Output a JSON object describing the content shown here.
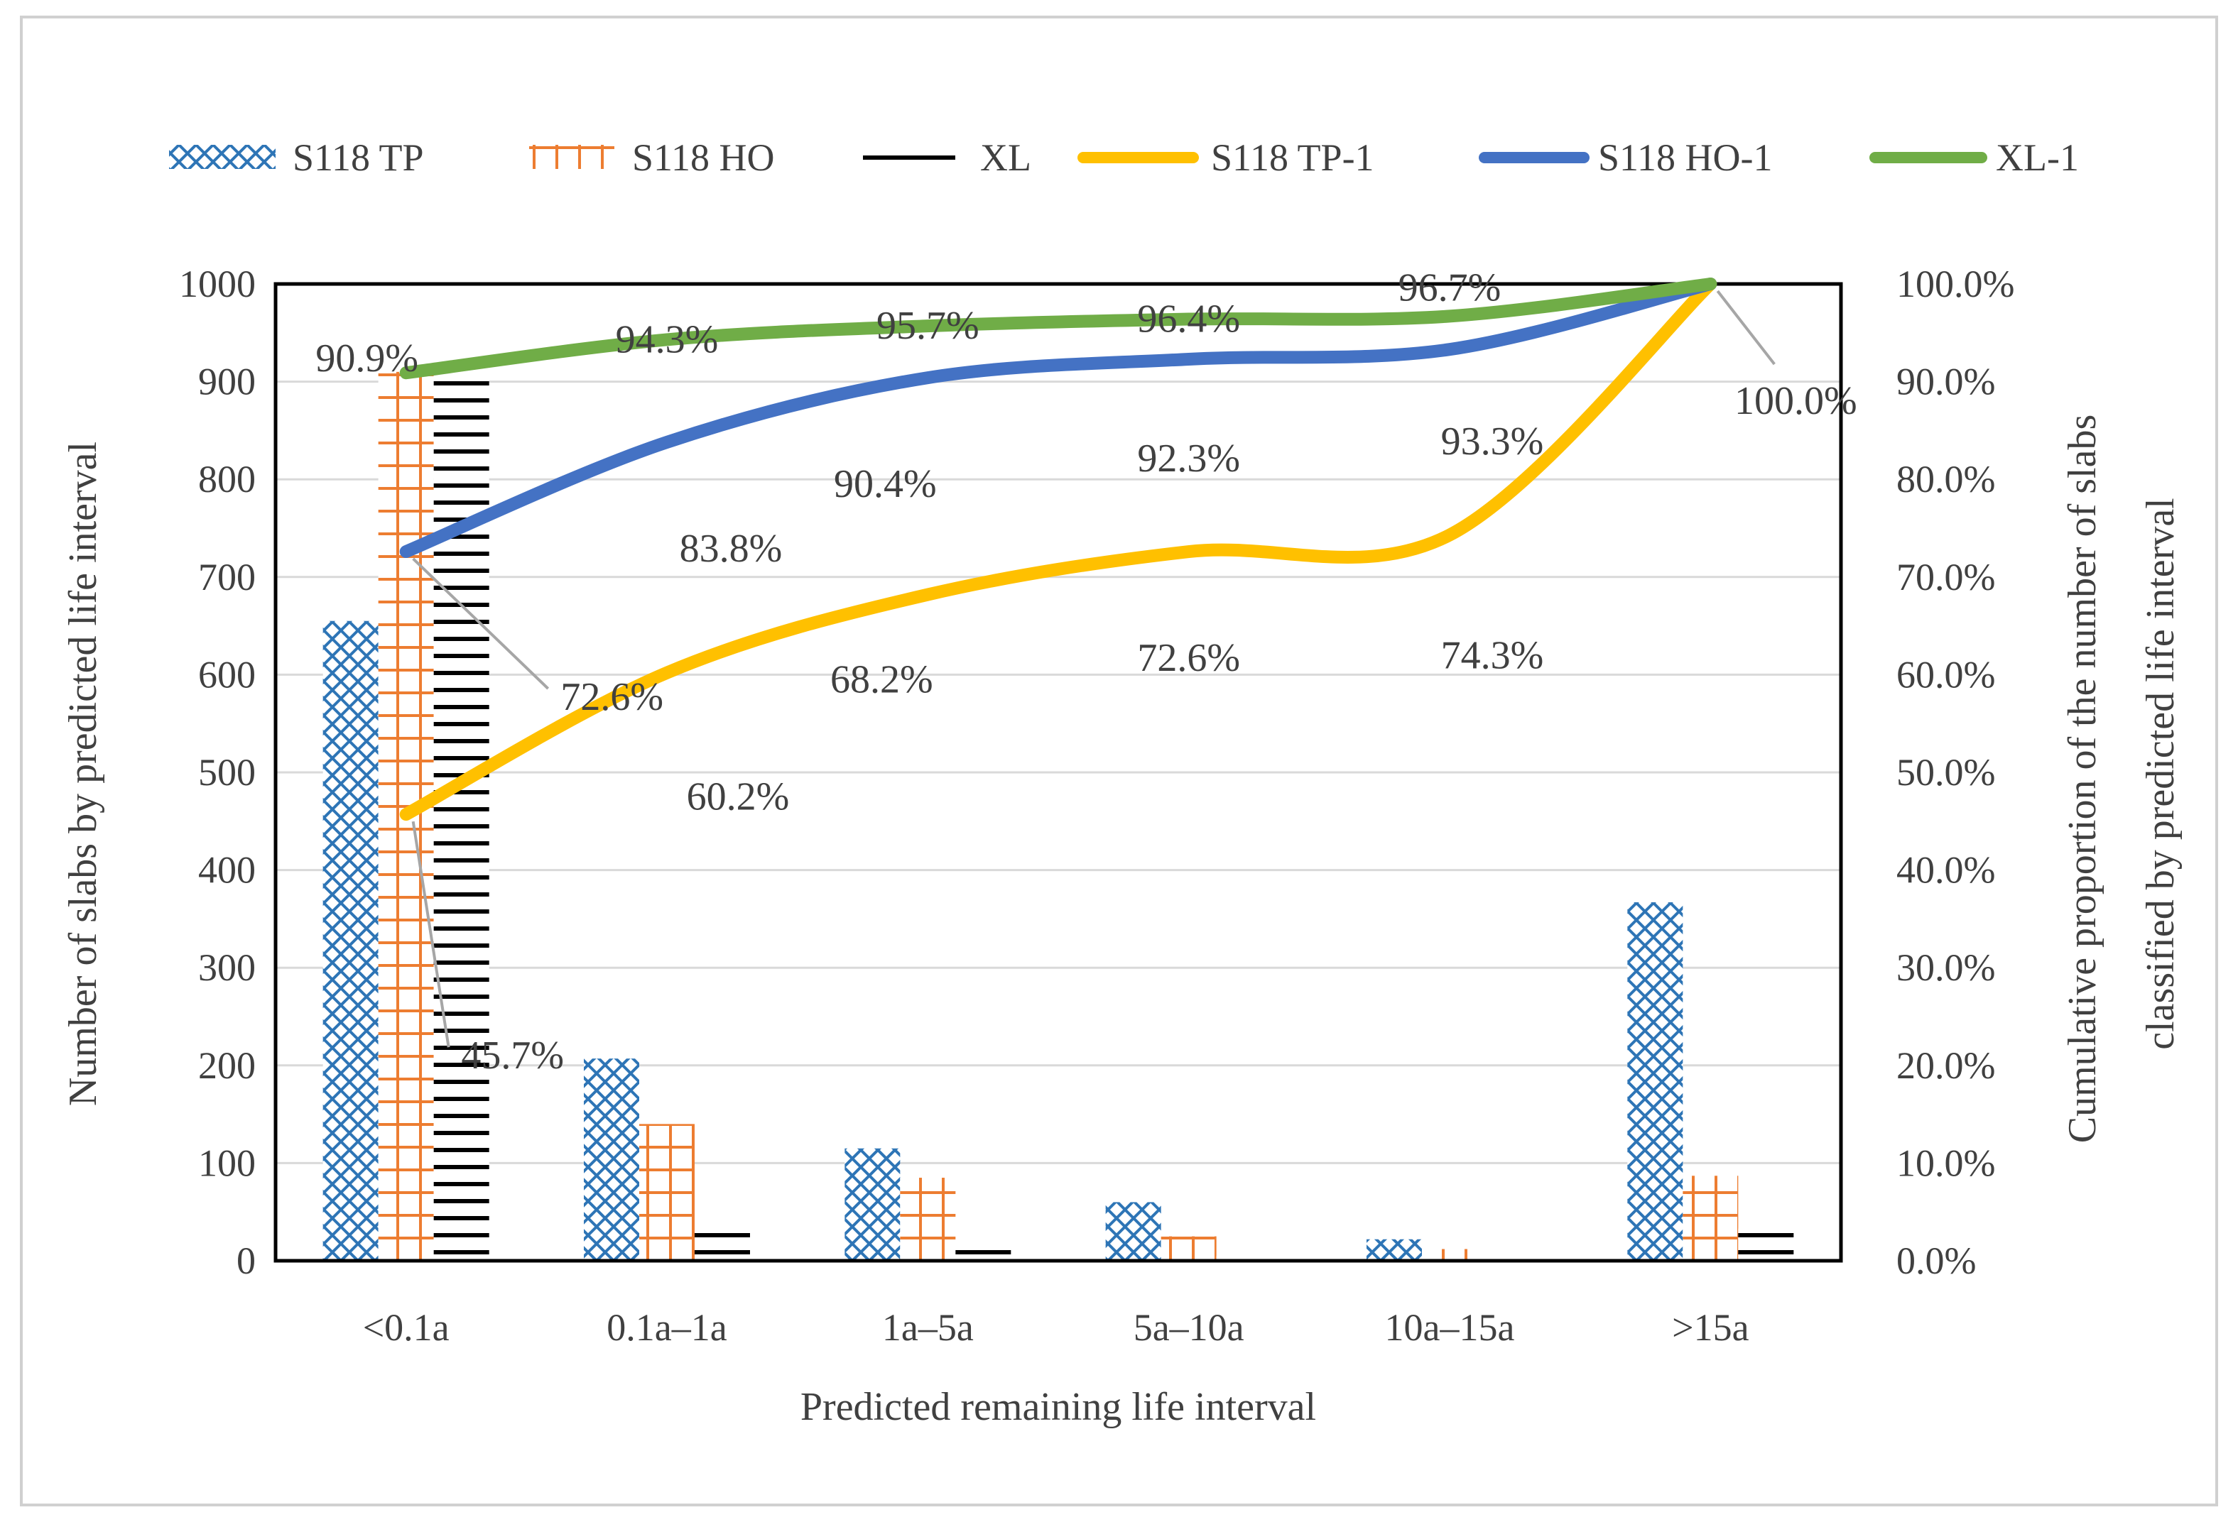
{
  "chart_data": {
    "type": "bar",
    "title": "",
    "xlabel": "Predicted remaining  life  interval",
    "ylabel": "Number of slabs by predicted life  interval",
    "y2label_lines": [
      "Cumulative  proportion of the number of slabs",
      "classified by predicted life  interval"
    ],
    "ylim": [
      0,
      1000
    ],
    "y2lim": [
      0,
      100
    ],
    "y_ticks": [
      "0",
      "100",
      "200",
      "300",
      "400",
      "500",
      "600",
      "700",
      "800",
      "900",
      "1000"
    ],
    "y2_ticks": [
      "0.0%",
      "10.0%",
      "20.0%",
      "30.0%",
      "40.0%",
      "50.0%",
      "60.0%",
      "70.0%",
      "80.0%",
      "90.0%",
      "100.0%"
    ],
    "grid": true,
    "legend_position": "top",
    "categories": [
      "<0.1a",
      "0.1a–1a",
      "1a–5a",
      "5a–10a",
      "10a–15a",
      ">15a"
    ],
    "series": [
      {
        "name": "S118 TP",
        "kind": "bar",
        "pattern": "cross",
        "color": "#2E75B6",
        "values": [
          655,
          207,
          115,
          60,
          22,
          367
        ]
      },
      {
        "name": "S118 HO",
        "kind": "bar",
        "pattern": "grid",
        "color": "#ED7D31",
        "values": [
          910,
          140,
          85,
          25,
          12,
          87
        ]
      },
      {
        "name": "XL",
        "kind": "bar",
        "pattern": "hlines",
        "color": "#000000",
        "values": [
          910,
          32,
          12,
          5,
          3,
          33
        ]
      },
      {
        "name": "S118 TP-1",
        "kind": "line",
        "axis": "y2",
        "color": "#FFC000",
        "values": [
          45.7,
          60.2,
          68.2,
          72.6,
          74.3,
          100.0
        ],
        "labels": [
          "45.7%",
          "60.2%",
          "68.2%",
          "72.6%",
          "74.3%",
          ""
        ]
      },
      {
        "name": "S118 HO-1",
        "kind": "line",
        "axis": "y2",
        "color": "#4472C4",
        "values": [
          72.6,
          83.8,
          90.4,
          92.3,
          93.3,
          100.0
        ],
        "labels": [
          "72.6%",
          "83.8%",
          "90.4%",
          "92.3%",
          "93.3%",
          "100.0%"
        ]
      },
      {
        "name": "XL-1",
        "kind": "line",
        "axis": "y2",
        "color": "#70AD47",
        "values": [
          90.9,
          94.3,
          95.7,
          96.4,
          96.7,
          100.0
        ],
        "labels": [
          "90.9%",
          "94.3%",
          "95.7%",
          "96.4%",
          "96.7%",
          ""
        ]
      }
    ]
  }
}
